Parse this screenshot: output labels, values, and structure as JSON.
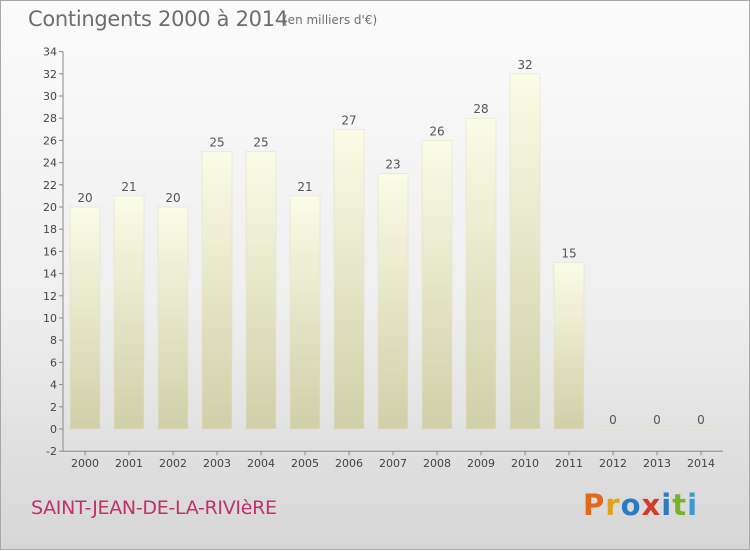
{
  "header": {
    "title": "Contingents 2000 à 2014",
    "subtitle": "(en milliers d'€)"
  },
  "footer": {
    "town": "SAINT-JEAN-DE-LA-RIVIèRE",
    "brand": "Proxiti"
  },
  "colors": {
    "bar_top": "#fbfce6",
    "bar_bottom": "#cfcfa8",
    "town": "#c0306a",
    "brand_letters": [
      "#e06a1a",
      "#e0a020",
      "#2a7bc2",
      "#d23a2a",
      "#2a7bc2",
      "#7ab02a",
      "#3a9bd0"
    ]
  },
  "chart_data": {
    "type": "bar",
    "categories": [
      "2000",
      "2001",
      "2002",
      "2003",
      "2004",
      "2005",
      "2006",
      "2007",
      "2008",
      "2009",
      "2010",
      "2011",
      "2012",
      "2013",
      "2014"
    ],
    "values": [
      20,
      21,
      20,
      25,
      25,
      21,
      27,
      23,
      26,
      28,
      32,
      15,
      0,
      0,
      0
    ],
    "data_labels": [
      "20",
      "21",
      "20",
      "25",
      "25",
      "21",
      "27",
      "23",
      "26",
      "28",
      "32",
      "15",
      "0",
      "0",
      "0"
    ],
    "y_ticks": [
      -2,
      0,
      2,
      4,
      6,
      8,
      10,
      12,
      14,
      16,
      18,
      20,
      22,
      24,
      26,
      28,
      30,
      32,
      34
    ],
    "ylim": [
      -2,
      34
    ],
    "grid": false,
    "title": "Contingents 2000 à 2014",
    "xlabel": "",
    "ylabel": ""
  }
}
